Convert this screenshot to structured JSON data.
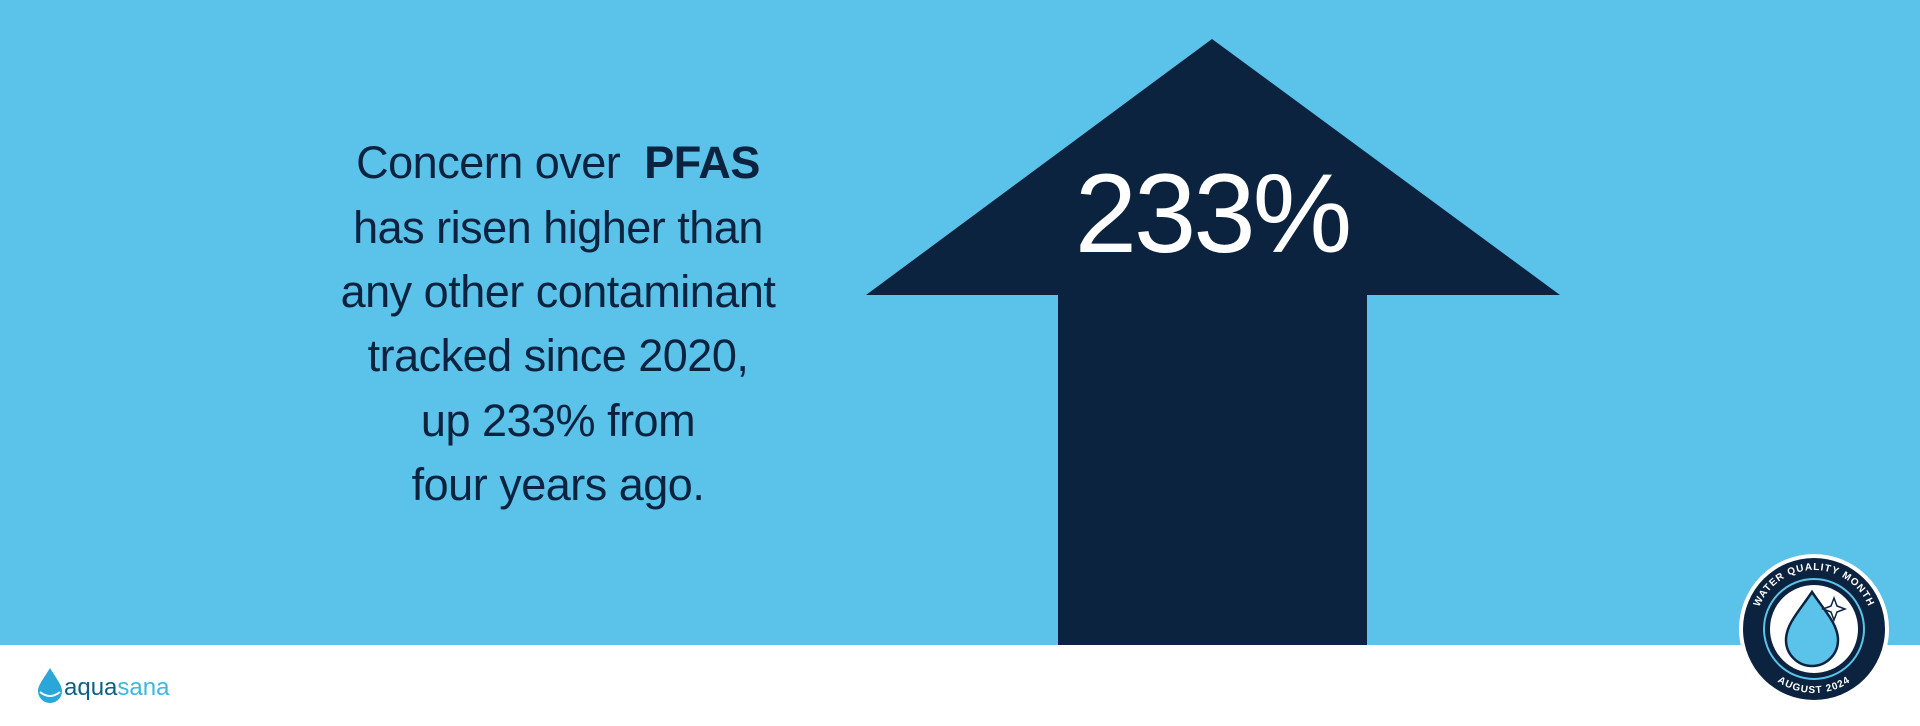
{
  "headline": {
    "lead": "Concern over",
    "emphasis": "PFAS",
    "lines": [
      "has risen higher than",
      "any other contaminant",
      "tracked since 2020,",
      "up 233% from",
      "four years ago."
    ]
  },
  "stat": "233%",
  "logo": {
    "first": "aqua",
    "second": "sana"
  },
  "badge": {
    "top": "WATER QUALITY MONTH",
    "bottom": "AUGUST 2024"
  }
}
